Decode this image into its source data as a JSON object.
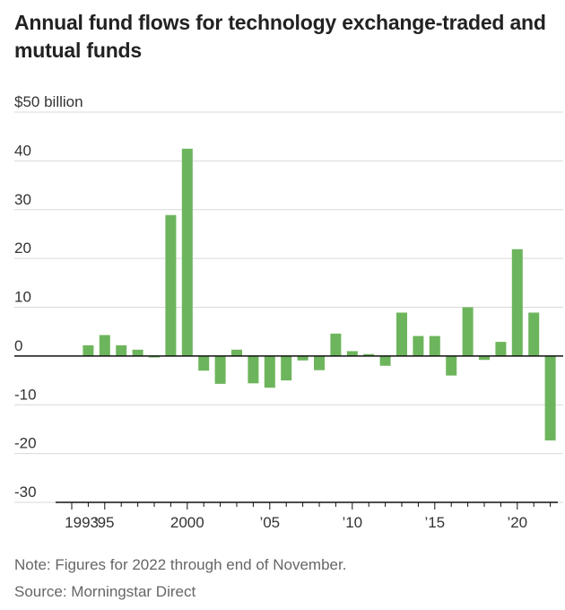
{
  "chart_data": {
    "type": "bar",
    "title": "Annual fund flows for technology exchange-traded and mutual funds",
    "unit_label": "$50 billion",
    "ylim": [
      -30,
      50
    ],
    "y_ticks": [
      40,
      30,
      20,
      10,
      0,
      -10,
      -20,
      -30
    ],
    "y_tick_labels": [
      "40",
      "30",
      "20",
      "10",
      "0",
      "-10",
      "-20",
      "-30"
    ],
    "x": [
      1993,
      1994,
      1995,
      1996,
      1997,
      1998,
      1999,
      2000,
      2001,
      2002,
      2003,
      2004,
      2005,
      2006,
      2007,
      2008,
      2009,
      2010,
      2011,
      2012,
      2013,
      2014,
      2015,
      2016,
      2017,
      2018,
      2019,
      2020,
      2021,
      2022
    ],
    "values": [
      0,
      2.2,
      4.3,
      2.2,
      1.3,
      -0.3,
      28.9,
      42.5,
      -3.0,
      -5.7,
      1.3,
      -5.6,
      -6.5,
      -5.0,
      -0.9,
      -2.9,
      4.6,
      1.0,
      0.4,
      -2.0,
      8.9,
      4.1,
      4.1,
      -4.0,
      10.0,
      -0.8,
      2.9,
      21.9,
      8.9,
      -17.3
    ],
    "series_color": "#6db55c",
    "x_tick_years": [
      1993,
      1995,
      2000,
      2005,
      2010,
      2015,
      2020
    ],
    "x_tick_labels": [
      "1993",
      "’95",
      "2000",
      "’05",
      "’10",
      "’15",
      "’20"
    ],
    "grid": true
  },
  "note": "Note: Figures for 2022 through end of November.",
  "source": "Source: Morningstar Direct"
}
